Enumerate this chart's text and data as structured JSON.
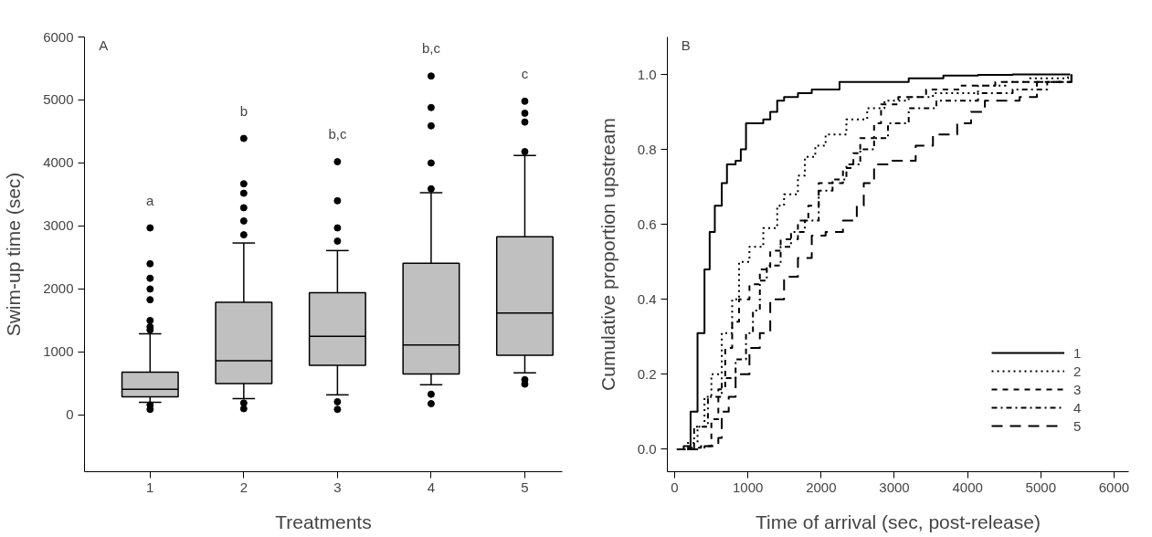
{
  "chart_data": [
    {
      "type": "box",
      "xlabel": "Treatments",
      "ylabel": "Swim-up time (sec)",
      "categories": [
        "1",
        "2",
        "3",
        "4",
        "5"
      ],
      "color": "#c0c0c0",
      "boxes": [
        {
          "low": 200,
          "q1": 290,
          "median": 410,
          "q3": 680,
          "high": 1290,
          "outliers": [
            90,
            160,
            1350,
            1400,
            1500,
            1830,
            2000,
            2170,
            2400,
            2970
          ]
        },
        {
          "low": 260,
          "q1": 500,
          "median": 860,
          "q3": 1790,
          "high": 2730,
          "outliers": [
            100,
            190,
            2860,
            3080,
            3290,
            3520,
            3670,
            4390
          ]
        },
        {
          "low": 320,
          "q1": 790,
          "median": 1250,
          "q3": 1940,
          "high": 2610,
          "outliers": [
            90,
            210,
            2760,
            2970,
            3400,
            4020
          ]
        },
        {
          "low": 480,
          "q1": 650,
          "median": 1110,
          "q3": 2410,
          "high": 3530,
          "outliers": [
            180,
            330,
            3590,
            4000,
            4590,
            4880,
            5380
          ]
        },
        {
          "low": 670,
          "q1": 950,
          "median": 1620,
          "q3": 2830,
          "high": 4120,
          "outliers": [
            490,
            560,
            4180,
            4650,
            4790,
            4980
          ]
        }
      ],
      "ylim": [
        -900,
        6000
      ],
      "yticks": [
        0,
        1000,
        2000,
        3000,
        4000,
        5000,
        6000
      ],
      "grid": false,
      "annotations": [
        "A",
        "a",
        "b",
        "b,c",
        "b,c",
        "c"
      ]
    },
    {
      "type": "step",
      "xlabel": "Time of arrival (sec, post-release)",
      "ylabel": "Cumulative proportion upstream",
      "xlim": [
        -100,
        6200
      ],
      "xticks": [
        0,
        1000,
        2000,
        3000,
        4000,
        5000,
        6000
      ],
      "ylim": [
        -0.06,
        1.1
      ],
      "yticks": [
        {
          "value": 0,
          "label": "0.0"
        },
        {
          "value": 0.2,
          "label": "0.2"
        },
        {
          "value": 0.4,
          "label": "0.4"
        },
        {
          "value": 0.6,
          "label": "0.6"
        },
        {
          "value": 0.8,
          "label": "0.8"
        },
        {
          "value": 1,
          "label": "1.0"
        }
      ],
      "grid": false,
      "legend": "bottom right",
      "marker": "none",
      "annotations": [
        "B"
      ],
      "series": [
        {
          "name": "1",
          "color": "#000000",
          "line_style": "solid",
          "x": [
            28,
            123,
            217,
            312,
            407,
            478,
            548,
            643,
            714,
            832,
            903,
            974,
            1045,
            1210,
            1305,
            1400,
            1494,
            1683,
            1872,
            2251,
            2723,
            3196,
            3669,
            4142,
            4615,
            5000,
            5400
          ],
          "values": [
            0,
            0.008,
            0.1,
            0.31,
            0.48,
            0.58,
            0.65,
            0.71,
            0.76,
            0.77,
            0.8,
            0.87,
            0.87,
            0.88,
            0.9,
            0.93,
            0.94,
            0.95,
            0.96,
            0.98,
            0.98,
            0.99,
            0.997,
            0.999,
            1,
            1,
            1
          ]
        },
        {
          "name": "2",
          "color": "#000000",
          "line_style": "dotted",
          "x": [
            170,
            312,
            407,
            501,
            643,
            785,
            879,
            1021,
            1210,
            1400,
            1494,
            1683,
            1778,
            1920,
            2061,
            2345,
            2629,
            2865,
            3196,
            3527,
            3764,
            4142,
            4520,
            4851,
            5371
          ],
          "values": [
            0.017,
            0.06,
            0.14,
            0.2,
            0.31,
            0.4,
            0.5,
            0.54,
            0.59,
            0.65,
            0.68,
            0.73,
            0.78,
            0.81,
            0.84,
            0.88,
            0.91,
            0.93,
            0.94,
            0.95,
            0.95,
            0.97,
            0.98,
            0.99,
            1
          ]
        },
        {
          "name": "3",
          "color": "#000000",
          "line_style": "dashed",
          "x": [
            170,
            359,
            501,
            596,
            690,
            785,
            879,
            1021,
            1163,
            1305,
            1447,
            1683,
            1825,
            1967,
            2156,
            2298,
            2440,
            2534,
            2723,
            2818,
            3054,
            3433,
            3905,
            4378,
            4851,
            5418
          ],
          "values": [
            0.004,
            0.008,
            0.08,
            0.16,
            0.27,
            0.34,
            0.4,
            0.44,
            0.48,
            0.53,
            0.56,
            0.61,
            0.65,
            0.71,
            0.71,
            0.75,
            0.79,
            0.83,
            0.87,
            0.92,
            0.94,
            0.96,
            0.97,
            0.98,
            0.98,
            1
          ]
        },
        {
          "name": "4",
          "color": "#000000",
          "line_style": "dashdot",
          "x": [
            76,
            265,
            454,
            643,
            832,
            974,
            1069,
            1163,
            1258,
            1447,
            1589,
            1778,
            1967,
            2156,
            2345,
            2534,
            2723,
            2913,
            3196,
            3574,
            3905,
            4142,
            4615,
            5087,
            5418
          ],
          "values": [
            0,
            0.06,
            0.14,
            0.19,
            0.24,
            0.31,
            0.37,
            0.45,
            0.49,
            0.54,
            0.58,
            0.61,
            0.69,
            0.72,
            0.76,
            0.8,
            0.83,
            0.87,
            0.91,
            0.93,
            0.93,
            0.95,
            0.96,
            0.98,
            1
          ]
        },
        {
          "name": "5",
          "color": "#000000",
          "line_style": "longdash",
          "x": [
            170,
            407,
            596,
            643,
            738,
            832,
            1021,
            1163,
            1305,
            1494,
            1683,
            1872,
            2061,
            2298,
            2487,
            2582,
            2723,
            2960,
            3291,
            3527,
            3858,
            4047,
            4236,
            4426,
            4710,
            4946,
            5418
          ],
          "values": [
            0,
            0.008,
            0.03,
            0.1,
            0.14,
            0.2,
            0.27,
            0.31,
            0.4,
            0.46,
            0.51,
            0.57,
            0.58,
            0.61,
            0.65,
            0.71,
            0.76,
            0.77,
            0.81,
            0.84,
            0.87,
            0.9,
            0.93,
            0.93,
            0.94,
            0.98,
            1
          ]
        }
      ]
    }
  ]
}
